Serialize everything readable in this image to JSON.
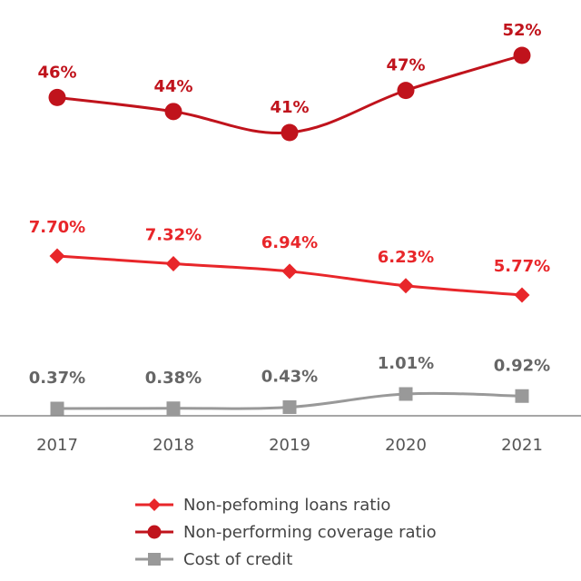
{
  "chart_data": {
    "type": "line",
    "categories": [
      "2017",
      "2018",
      "2019",
      "2020",
      "2021"
    ],
    "series": [
      {
        "name": "Non-performing coverage ratio",
        "values": [
          46,
          44,
          41,
          47,
          52
        ],
        "labels": [
          "46%",
          "44%",
          "41%",
          "47%",
          "52%"
        ],
        "color": "#c0131c",
        "marker": "circle"
      },
      {
        "name": "Non-pefoming loans ratio",
        "values": [
          7.7,
          7.32,
          6.94,
          6.23,
          5.77
        ],
        "labels": [
          "7.70%",
          "7.32%",
          "6.94%",
          "6.23%",
          "5.77%"
        ],
        "color": "#e8262a",
        "marker": "diamond"
      },
      {
        "name": "Cost of credit",
        "values": [
          0.37,
          0.38,
          0.43,
          1.01,
          0.92
        ],
        "labels": [
          "0.37%",
          "0.38%",
          "0.43%",
          "1.01%",
          "0.92%"
        ],
        "color": "#999999",
        "marker": "square"
      }
    ],
    "legend": [
      {
        "name": "Non-pefoming loans ratio",
        "color": "#e8262a",
        "marker": "diamond"
      },
      {
        "name": "Non-performing coverage ratio",
        "color": "#c0131c",
        "marker": "circle"
      },
      {
        "name": "Cost of credit",
        "color": "#999999",
        "marker": "square"
      }
    ],
    "legend_position": "bottom",
    "grid": false,
    "title": "",
    "xlabel": "",
    "ylabel": ""
  }
}
